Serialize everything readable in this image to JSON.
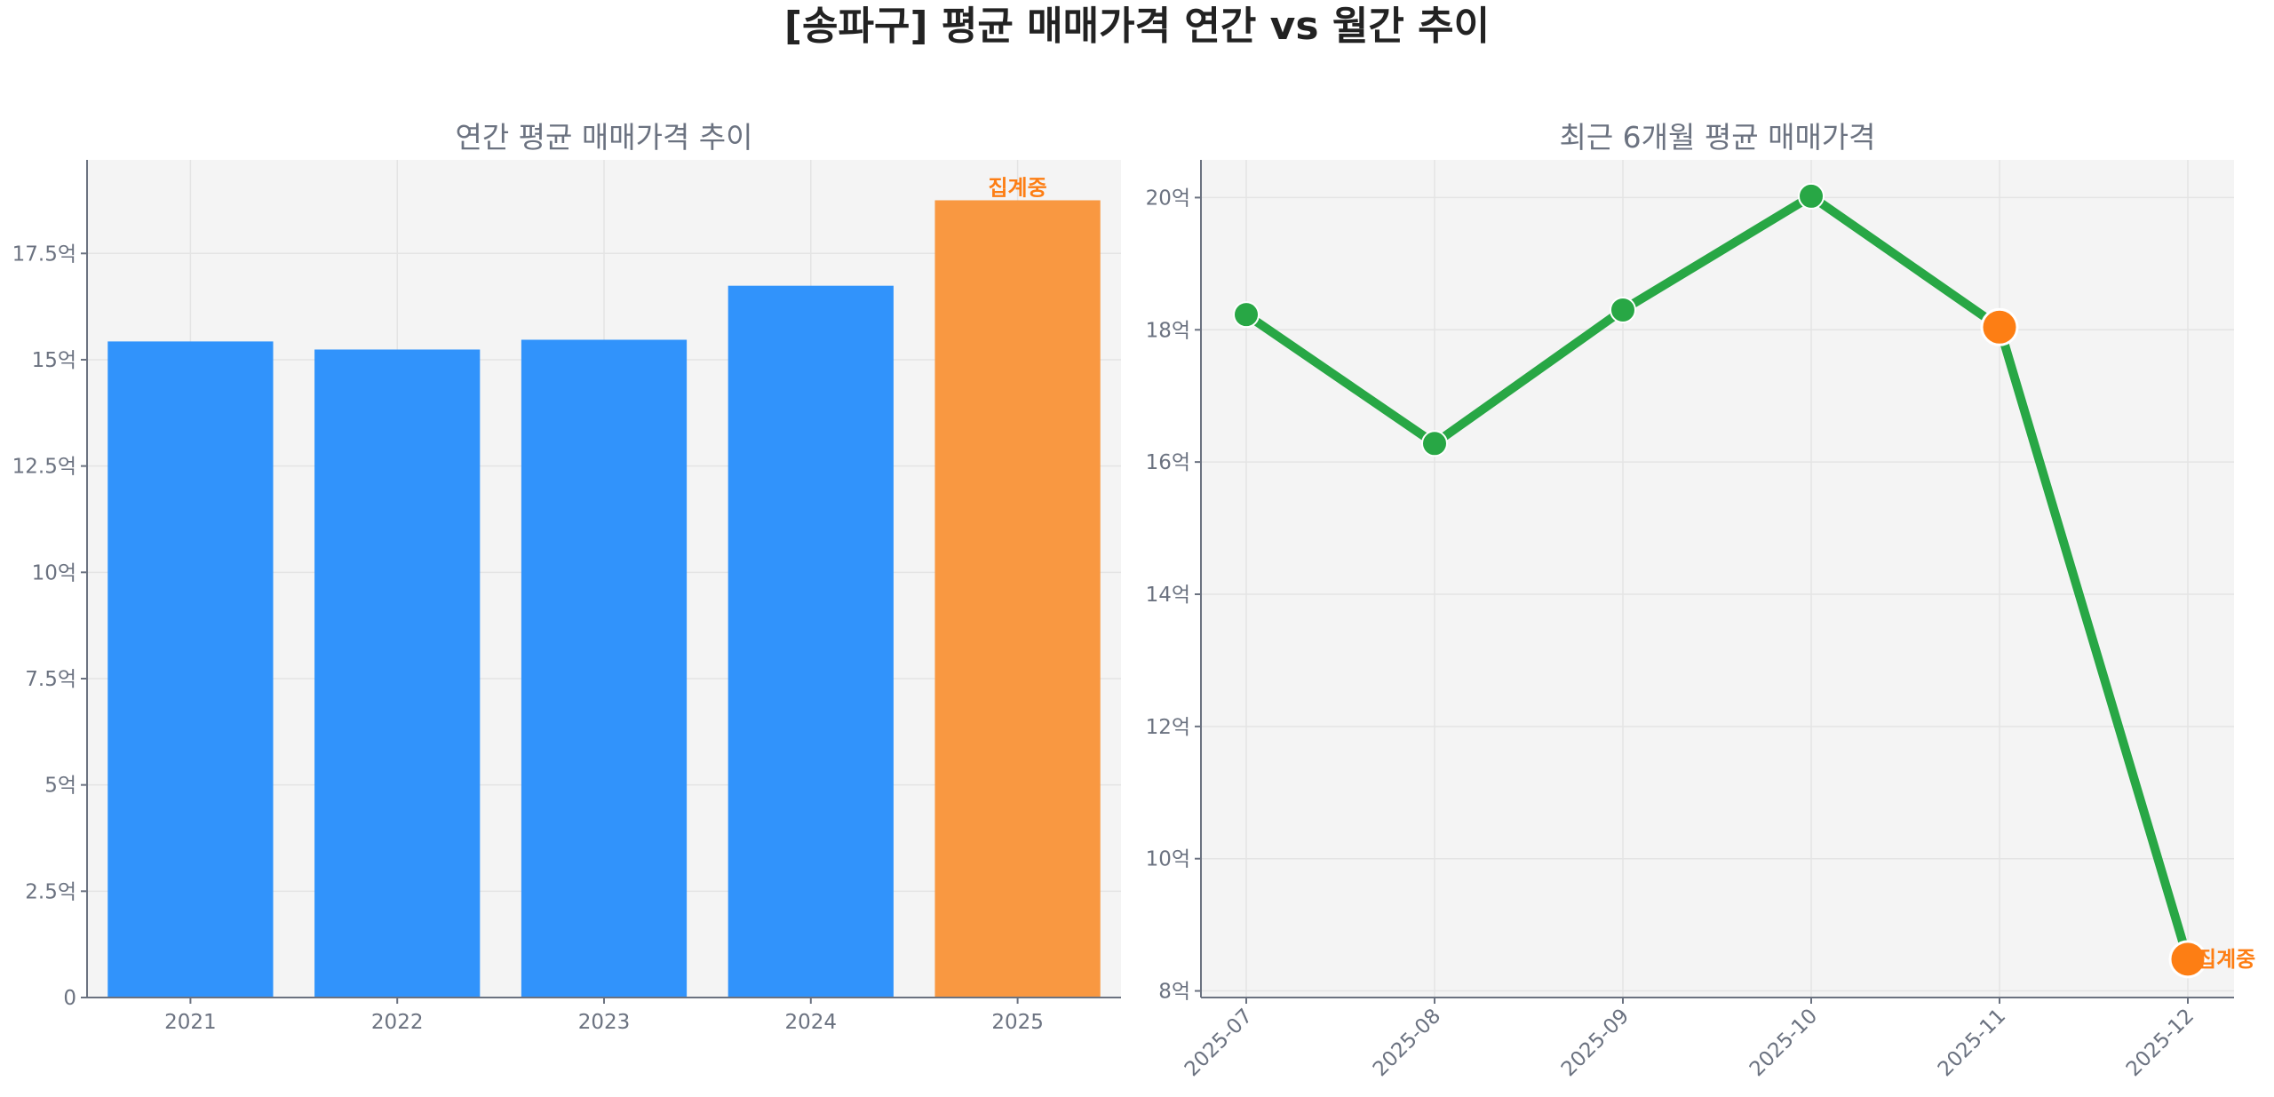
{
  "chart_data": {
    "title": "[송파구] 평균 매매가격 연간 vs 월간 추이",
    "colors": {
      "bar": "#3193fb",
      "bar_partial": "#f99841",
      "line": "#28a745",
      "highlight": "#fd7e14",
      "plot_bg": "#f4f4f4"
    },
    "charts": [
      {
        "type": "bar",
        "title": "연간 평균 매매가격 추이",
        "categories": [
          "2021",
          "2022",
          "2023",
          "2024",
          "2025"
        ],
        "values": [
          15.43,
          15.24,
          15.47,
          16.74,
          18.75
        ],
        "partial_index": 4,
        "annotation": "집계중",
        "ylim": [
          0,
          19.7
        ],
        "yticks": [
          0,
          2.5,
          5,
          7.5,
          10,
          12.5,
          15,
          17.5
        ],
        "ytick_labels": [
          "0",
          "2.5억",
          "5억",
          "7.5억",
          "10억",
          "12.5억",
          "15억",
          "17.5억"
        ],
        "grid": true
      },
      {
        "type": "line",
        "title": "최근 6개월 평균 매매가격",
        "categories": [
          "2025-07",
          "2025-08",
          "2025-09",
          "2025-10",
          "2025-11",
          "2025-12"
        ],
        "values": [
          18.23,
          16.28,
          18.3,
          20.02,
          18.04,
          8.48
        ],
        "highlight_indices": [
          4,
          5
        ],
        "annotation": "집계중",
        "ylim": [
          7.9,
          20.57
        ],
        "yticks": [
          8,
          10,
          12,
          14,
          16,
          18,
          20
        ],
        "ytick_labels": [
          "8억",
          "10억",
          "12억",
          "14억",
          "16억",
          "18억",
          "20억"
        ],
        "grid": true
      }
    ]
  }
}
